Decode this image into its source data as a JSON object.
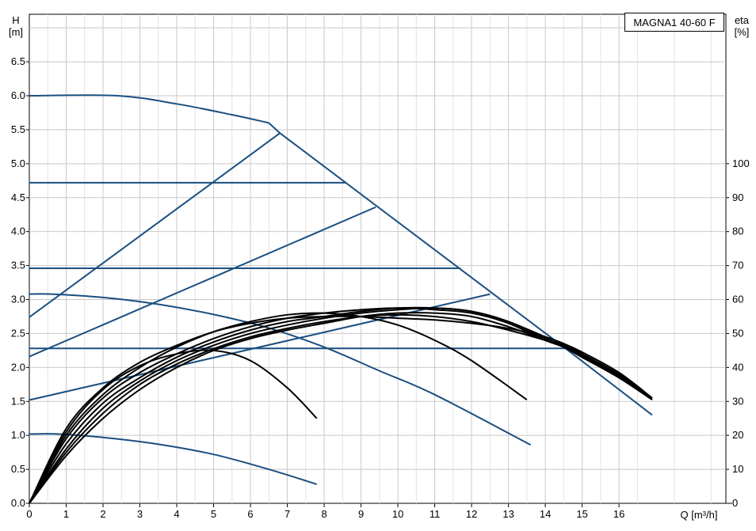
{
  "chart_data": {
    "type": "line",
    "title": "MAGNA1 40-60 F",
    "y_left_label_top": "H",
    "y_left_label_unit": "[m]",
    "y_right_label_top": "eta",
    "y_right_label_unit": "[%]",
    "x_label": "Q [m³/h]",
    "xlim": [
      0,
      18.9
    ],
    "ylim": [
      0,
      7.2
    ],
    "x_ticks": [
      "0",
      "1",
      "2",
      "3",
      "4",
      "5",
      "6",
      "7",
      "8",
      "9",
      "10",
      "11",
      "12",
      "13",
      "14",
      "15",
      "16"
    ],
    "y_left_ticks": [
      "0.0",
      "0.5",
      "1.0",
      "1.5",
      "2.0",
      "2.5",
      "3.0",
      "3.5",
      "4.0",
      "4.5",
      "5.0",
      "5.5",
      "6.0",
      "6.5"
    ],
    "y_right_ticks": [
      "0",
      "10",
      "20",
      "30",
      "40",
      "50",
      "60",
      "70",
      "80",
      "90",
      "100"
    ],
    "grid": true,
    "colors": {
      "qh": "#1a4f80",
      "eta": "#000000",
      "grid": "#c8c8c8"
    },
    "qh_series": [
      {
        "x": [
          0,
          2.4,
          4.0,
          5.5,
          6.5
        ],
        "y": [
          6.0,
          6.0,
          5.88,
          5.72,
          5.6
        ]
      },
      {
        "x": [
          0,
          0.6,
          2.0,
          3.5,
          5.0,
          6.5,
          8.0,
          9.5,
          11.0,
          13.6
        ],
        "y": [
          3.08,
          3.08,
          3.03,
          2.93,
          2.78,
          2.58,
          2.3,
          1.95,
          1.6,
          0.86
        ]
      },
      {
        "x": [
          0,
          0.8,
          2.0,
          3.5,
          5.0,
          6.5,
          7.8
        ],
        "y": [
          1.02,
          1.02,
          0.97,
          0.87,
          0.72,
          0.5,
          0.28
        ]
      },
      {
        "x": [
          6.5,
          6.8,
          14.5,
          16.9
        ],
        "y": [
          5.6,
          5.45,
          2.3,
          1.3
        ]
      },
      {
        "x": [
          0,
          6.8
        ],
        "y": [
          2.74,
          5.45
        ]
      },
      {
        "x": [
          0,
          9.4
        ],
        "y": [
          2.16,
          4.36
        ]
      },
      {
        "x": [
          0,
          12.5
        ],
        "y": [
          1.52,
          3.08
        ]
      },
      {
        "x": [
          0,
          8.6
        ],
        "y": [
          4.72,
          4.72
        ]
      },
      {
        "x": [
          0,
          11.7
        ],
        "y": [
          3.46,
          3.46
        ]
      },
      {
        "x": [
          0,
          14.6
        ],
        "y": [
          2.28,
          2.28
        ]
      }
    ],
    "eta_series": [
      {
        "x": [
          0,
          1.0,
          2.0,
          3.0,
          4.0,
          5.0,
          6.0,
          7.0,
          7.8
        ],
        "y": [
          0,
          21.0,
          33.5,
          40.5,
          44.0,
          45.0,
          42.0,
          34.0,
          25.0
        ]
      },
      {
        "x": [
          0,
          1.0,
          2.0,
          3.0,
          4.0,
          5.0,
          6.0,
          7.0,
          8.0,
          9.0,
          10.0,
          11.0,
          12.0,
          13.5
        ],
        "y": [
          0,
          20.0,
          32.0,
          40.0,
          46.0,
          50.5,
          53.5,
          55.5,
          56.0,
          55.0,
          52.5,
          48.0,
          42.0,
          30.5
        ]
      },
      {
        "x": [
          0,
          1.0,
          2.0,
          3.0,
          4.0,
          5.0,
          6.0,
          7.0,
          8.0,
          9.0,
          10.0,
          11.0,
          12.0,
          13.0,
          14.0,
          14.5,
          15.0,
          16.0,
          16.9
        ],
        "y": [
          0,
          19.0,
          31.0,
          38.5,
          44.0,
          48.5,
          52.0,
          54.5,
          56.0,
          57.0,
          57.5,
          57.0,
          56.0,
          53.0,
          48.0,
          46.0,
          43.0,
          37.0,
          30.5
        ]
      },
      {
        "x": [
          0,
          1.0,
          2.0,
          3.0,
          4.0,
          5.0,
          6.0,
          7.0,
          8.0,
          9.0,
          10.0,
          11.0,
          12.0,
          13.0,
          14.0,
          14.5,
          15.0,
          16.0,
          16.9
        ],
        "y": [
          0,
          17.5,
          29.5,
          37.0,
          43.0,
          47.5,
          51.0,
          53.5,
          55.0,
          56.5,
          57.5,
          57.5,
          56.5,
          53.5,
          48.5,
          46.5,
          43.5,
          37.5,
          31.0
        ]
      },
      {
        "x": [
          0,
          1.0,
          2.0,
          3.0,
          4.0,
          5.0,
          6.0,
          7.0,
          8.0,
          9.0,
          10.0,
          11.0,
          12.0,
          13.0,
          14.0,
          14.5,
          15.0,
          16.0,
          16.9
        ],
        "y": [
          0,
          16.0,
          28.0,
          36.0,
          42.0,
          46.5,
          50.0,
          52.5,
          54.5,
          56.0,
          57.0,
          57.5,
          56.5,
          53.5,
          49.0,
          47.0,
          44.0,
          38.0,
          31.0
        ]
      },
      {
        "x": [
          0,
          1.0,
          2.0,
          3.0,
          4.0,
          5.0,
          6.0,
          7.0,
          8.0,
          9.0,
          10.0,
          11.0,
          12.0,
          13.0,
          14.0,
          14.5,
          15.0,
          16.0,
          16.9
        ],
        "y": [
          0,
          22.0,
          34.0,
          41.5,
          46.5,
          50.5,
          53.0,
          54.5,
          55.0,
          55.0,
          54.5,
          54.0,
          53.0,
          51.5,
          49.0,
          47.0,
          44.5,
          38.5,
          31.0
        ]
      },
      {
        "x": [
          0,
          1.0,
          2.0,
          3.0,
          4.0,
          5.0,
          6.0,
          7.0,
          8.0,
          9.0,
          10.0,
          11.0,
          12.0,
          13.0,
          14.0,
          14.5,
          15.0,
          16.0,
          16.9
        ],
        "y": [
          0,
          15.0,
          26.5,
          35.0,
          41.0,
          45.5,
          49.0,
          51.5,
          53.5,
          55.0,
          55.5,
          55.0,
          53.5,
          51.0,
          48.0,
          46.0,
          43.5,
          37.5,
          30.5
        ]
      },
      {
        "x": [
          0,
          1.0,
          2.0,
          3.0,
          4.0,
          5.0,
          6.0,
          7.0,
          8.0,
          9.0,
          10.0,
          11.0,
          12.0,
          13.0,
          14.0,
          14.5,
          15.0,
          16.0,
          16.9
        ],
        "y": [
          0,
          14.0,
          25.0,
          33.5,
          40.0,
          45.0,
          48.5,
          51.0,
          53.0,
          55.0,
          56.0,
          56.0,
          55.0,
          52.0,
          48.0,
          46.0,
          43.0,
          37.0,
          30.5
        ]
      }
    ]
  }
}
